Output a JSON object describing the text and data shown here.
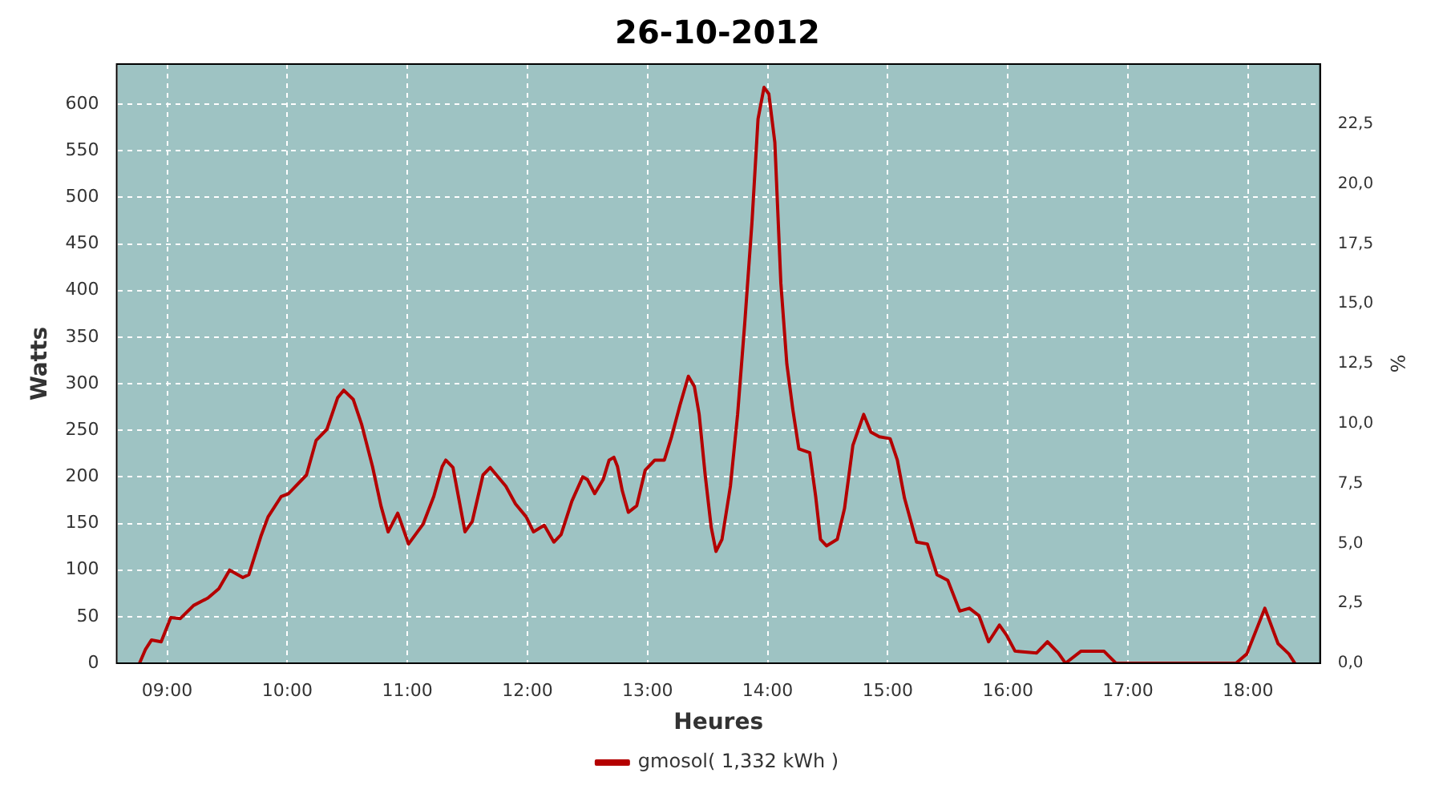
{
  "chart_data": {
    "type": "line",
    "title": "26-10-2012",
    "xlabel": "Heures",
    "ylabel": "Watts",
    "y2label": "%",
    "xlim": [
      8.58,
      18.6
    ],
    "xticks": [
      {
        "value": 9,
        "label": "09:00"
      },
      {
        "value": 10,
        "label": "10:00"
      },
      {
        "value": 11,
        "label": "11:00"
      },
      {
        "value": 12,
        "label": "12:00"
      },
      {
        "value": 13,
        "label": "13:00"
      },
      {
        "value": 14,
        "label": "14:00"
      },
      {
        "value": 15,
        "label": "15:00"
      },
      {
        "value": 16,
        "label": "16:00"
      },
      {
        "value": 17,
        "label": "17:00"
      },
      {
        "value": 18,
        "label": "18:00"
      }
    ],
    "ylim": [
      0,
      643
    ],
    "yticks": [
      0,
      50,
      100,
      150,
      200,
      250,
      300,
      350,
      400,
      450,
      500,
      550,
      600
    ],
    "y2lim": [
      0,
      25
    ],
    "y2ticks": [
      {
        "value": 0,
        "label": "0,0"
      },
      {
        "value": 2.5,
        "label": "2,5"
      },
      {
        "value": 5,
        "label": "5,0"
      },
      {
        "value": 7.5,
        "label": "7,5"
      },
      {
        "value": 10,
        "label": "10,0"
      },
      {
        "value": 12.5,
        "label": "12,5"
      },
      {
        "value": 15,
        "label": "15,0"
      },
      {
        "value": 17.5,
        "label": "17,5"
      },
      {
        "value": 20,
        "label": "20,0"
      },
      {
        "value": 22.5,
        "label": "22,5"
      }
    ],
    "grid": true,
    "legend": "bottom",
    "marker": "none",
    "line_style": "solid",
    "series": [
      {
        "name": "gmosol( 1,332 kWh )",
        "color": "#b40000",
        "x": [
          8.77,
          8.82,
          8.87,
          8.95,
          9.03,
          9.11,
          9.22,
          9.34,
          9.43,
          9.52,
          9.63,
          9.68,
          9.78,
          9.84,
          9.95,
          10.01,
          10.16,
          10.24,
          10.33,
          10.42,
          10.47,
          10.55,
          10.62,
          10.71,
          10.78,
          10.84,
          10.92,
          11.01,
          11.13,
          11.22,
          11.29,
          11.32,
          11.38,
          11.48,
          11.54,
          11.63,
          11.69,
          11.82,
          11.9,
          11.99,
          12.05,
          12.14,
          12.22,
          12.28,
          12.37,
          12.46,
          12.5,
          12.56,
          12.63,
          12.68,
          12.72,
          12.75,
          12.79,
          12.84,
          12.91,
          12.98,
          13.06,
          13.14,
          13.2,
          13.27,
          13.34,
          13.39,
          13.43,
          13.48,
          13.53,
          13.57,
          13.62,
          13.69,
          13.75,
          13.81,
          13.87,
          13.92,
          13.97,
          14.01,
          14.06,
          14.11,
          14.16,
          14.21,
          14.26,
          14.35,
          14.4,
          14.44,
          14.49,
          14.58,
          14.64,
          14.71,
          14.8,
          14.86,
          14.93,
          15.02,
          15.08,
          15.14,
          15.24,
          15.33,
          15.41,
          15.5,
          15.6,
          15.68,
          15.76,
          15.84,
          15.93,
          15.99,
          16.06,
          16.24,
          16.33,
          16.42,
          16.48,
          16.61,
          16.8,
          16.9,
          17.9,
          17.99,
          18.14,
          18.25,
          18.34,
          18.39
        ],
        "values": [
          0,
          15,
          25,
          23,
          49,
          48,
          62,
          70,
          80,
          100,
          92,
          95,
          136,
          157,
          179,
          182,
          202,
          239,
          251,
          285,
          293,
          283,
          256,
          211,
          169,
          141,
          161,
          128,
          149,
          179,
          211,
          218,
          210,
          141,
          152,
          202,
          210,
          190,
          171,
          157,
          141,
          148,
          130,
          138,
          174,
          200,
          197,
          182,
          197,
          218,
          221,
          211,
          185,
          162,
          169,
          207,
          218,
          218,
          243,
          277,
          308,
          297,
          267,
          202,
          146,
          120,
          133,
          190,
          267,
          366,
          474,
          584,
          618,
          611,
          559,
          408,
          321,
          272,
          230,
          226,
          179,
          133,
          126,
          133,
          166,
          234,
          267,
          248,
          243,
          241,
          218,
          177,
          130,
          128,
          95,
          89,
          56,
          59,
          51,
          23,
          41,
          30,
          13,
          11,
          23,
          11,
          0,
          13,
          13,
          0,
          0,
          10,
          59,
          21,
          10,
          0
        ]
      }
    ]
  }
}
